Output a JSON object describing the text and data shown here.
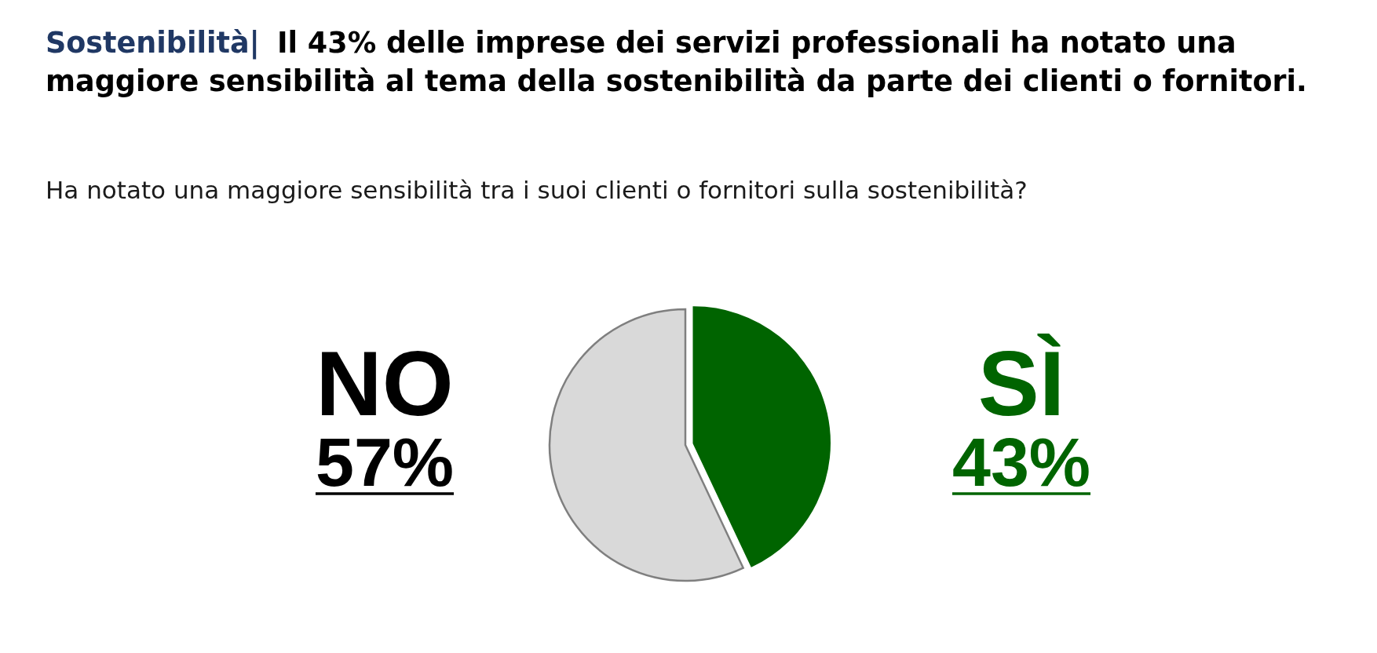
{
  "chart_data": {
    "type": "pie",
    "title": "Sostenibilità| Il 43% delle imprese dei servizi professionali ha notato una\nmaggiore sensibilità al tema della sostenibilità da parte dei clienti o fornitori.",
    "subtitle": "Ha notato una maggiore sensibilità tra i suoi clienti o fornitori sulla sostenibilità?",
    "categories": [
      "NO",
      "SÌ"
    ],
    "values": [
      57,
      43
    ],
    "colors": [
      "#d9d9d9",
      "#006400"
    ],
    "value_labels": [
      "57%",
      "43%"
    ]
  }
}
